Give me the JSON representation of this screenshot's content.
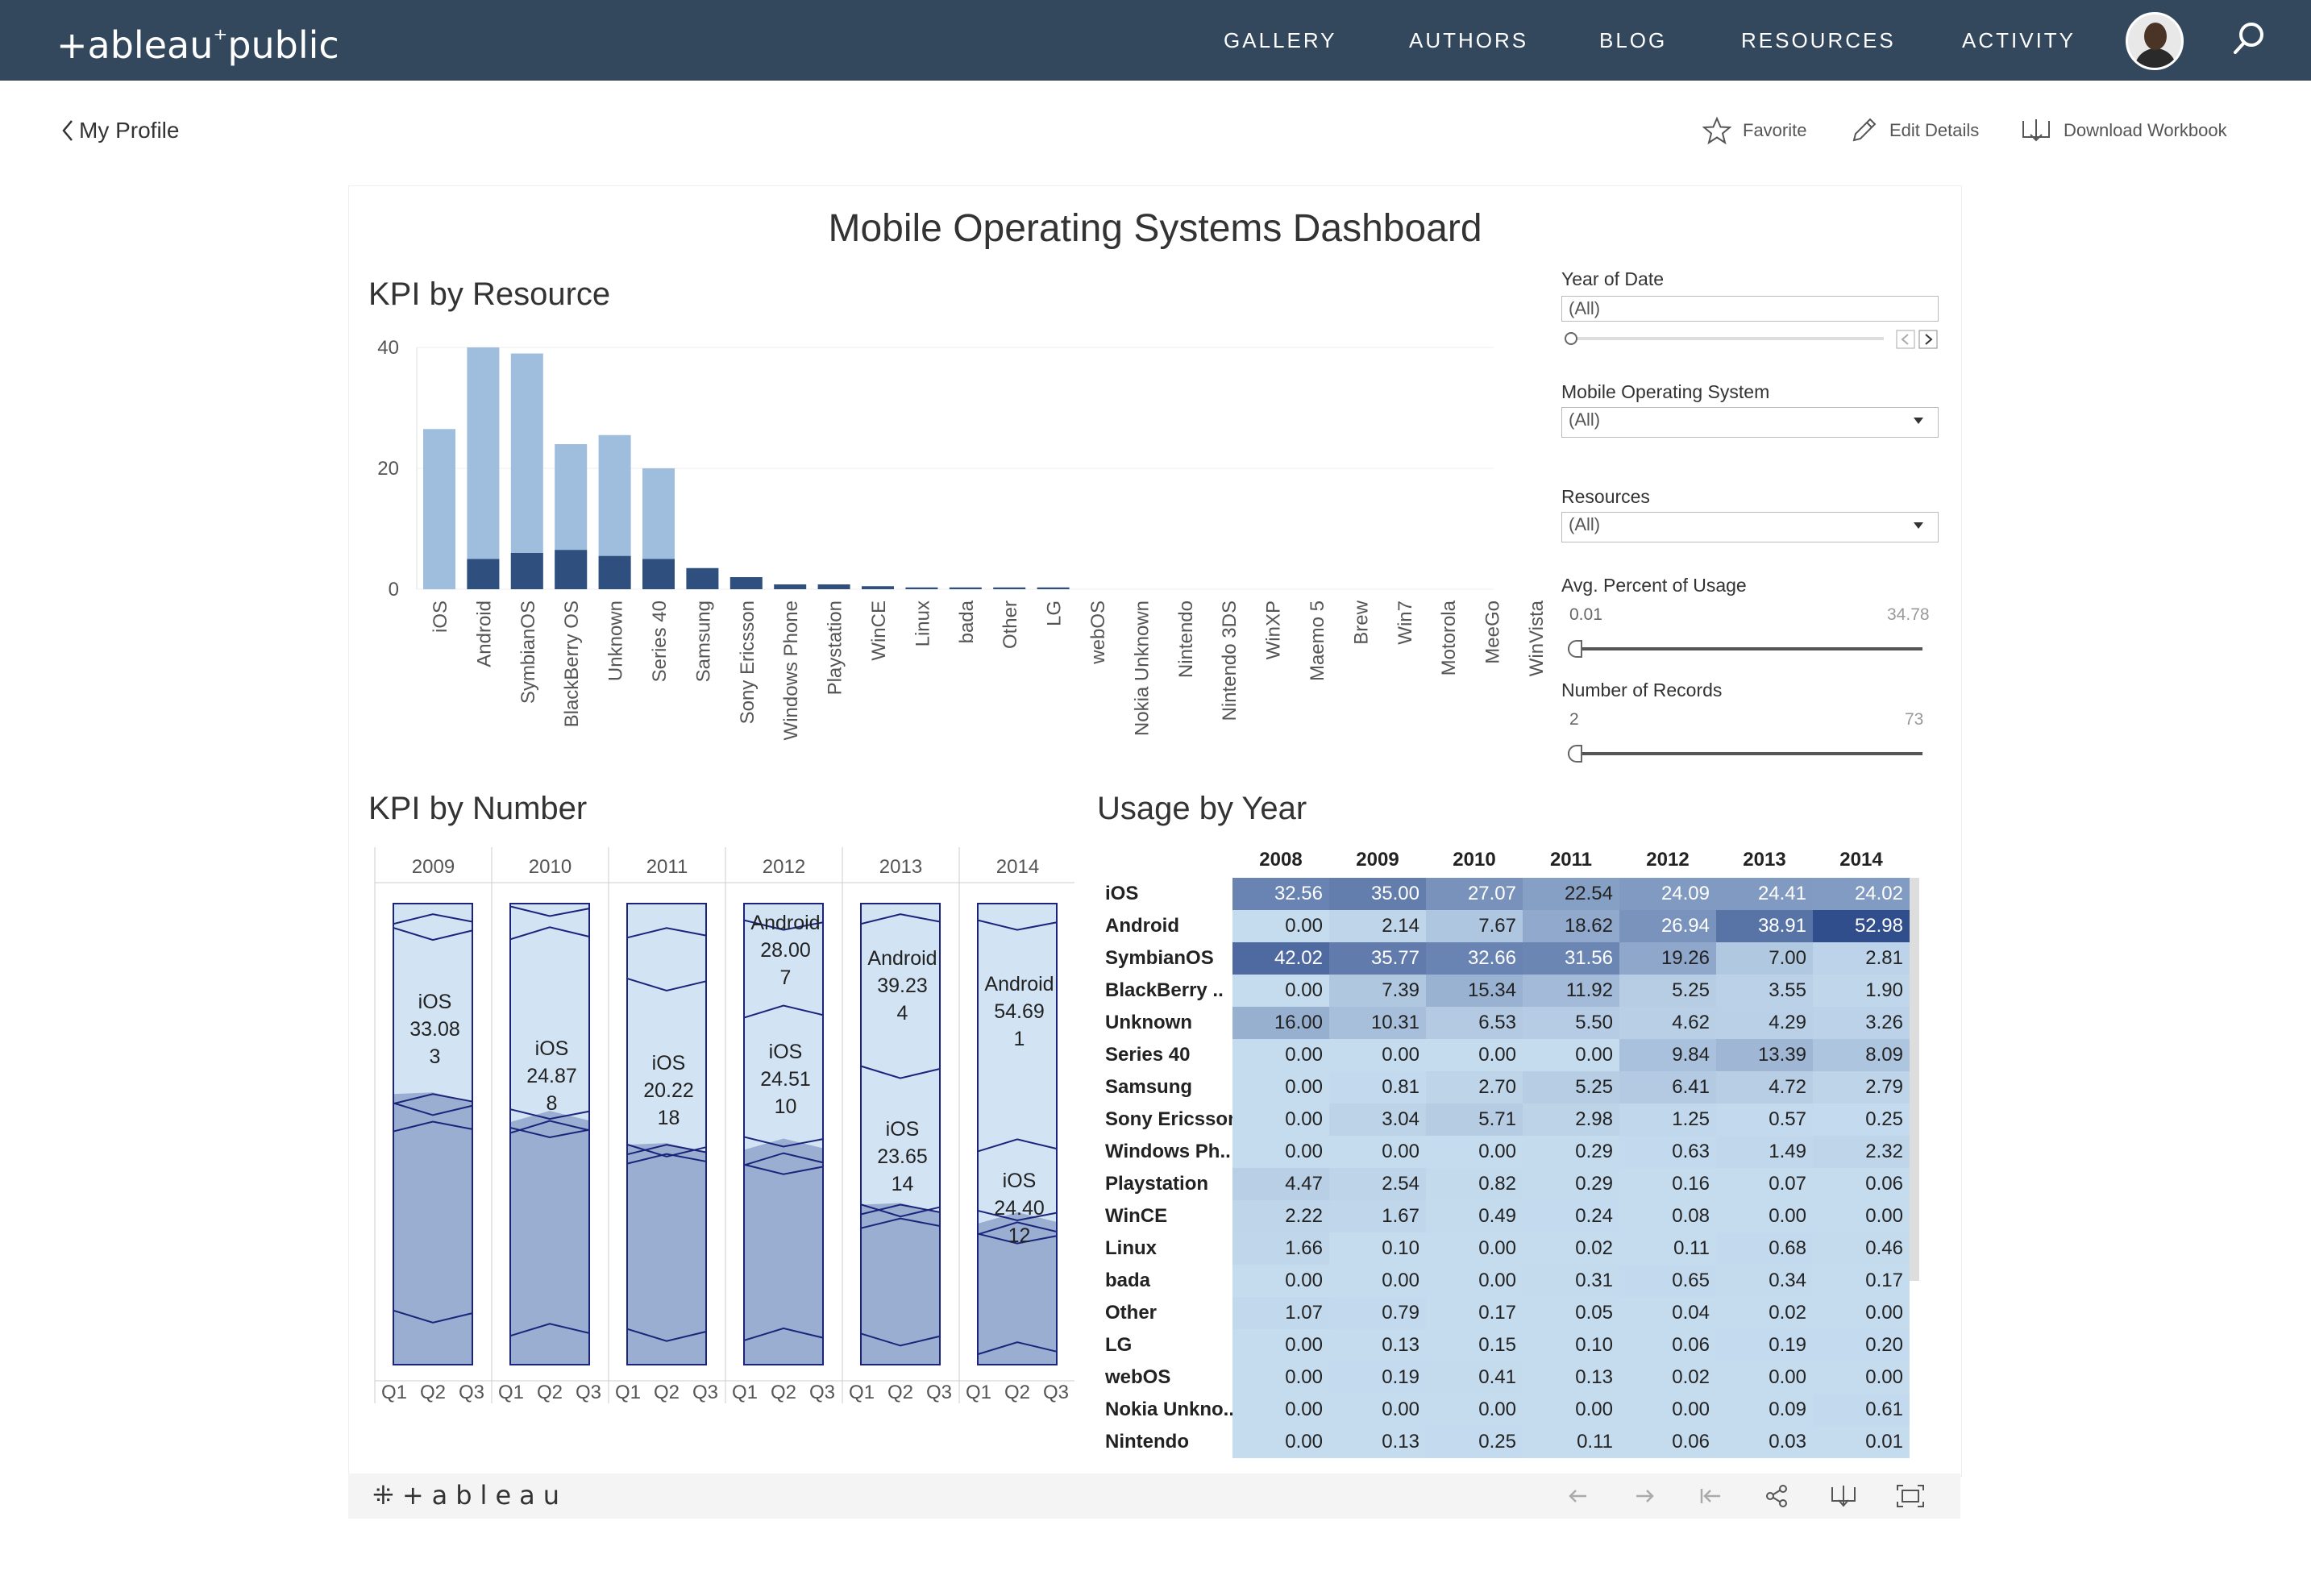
{
  "nav": {
    "logo": "+ableau",
    "logo_suffix": "public",
    "items": [
      "GALLERY",
      "AUTHORS",
      "BLOG",
      "RESOURCES",
      "ACTIVITY"
    ]
  },
  "subbar": {
    "back_label": "My Profile",
    "favorite": "Favorite",
    "edit": "Edit Details",
    "download": "Download Workbook"
  },
  "dashboard": {
    "title": "Mobile Operating Systems Dashboard",
    "kpi_resource_title": "KPI by Resource",
    "kpi_number_title": "KPI by Number",
    "usage_title": "Usage by Year"
  },
  "filters": {
    "year": {
      "label": "Year of Date",
      "value": "(All)"
    },
    "os": {
      "label": "Mobile Operating System",
      "value": "(All)"
    },
    "resources": {
      "label": "Resources",
      "value": "(All)"
    },
    "avg_usage": {
      "label": "Avg. Percent of Usage",
      "min": "0.01",
      "max": "34.78"
    },
    "records": {
      "label": "Number of Records",
      "min": "2",
      "max": "73"
    }
  },
  "chart_data": [
    {
      "type": "bar",
      "title": "KPI by Resource",
      "categories": [
        "iOS",
        "Android",
        "SymbianOS",
        "BlackBerry OS",
        "Unknown",
        "Series 40",
        "Samsung",
        "Sony Ericsson",
        "Windows Phone",
        "Playstation",
        "WinCE",
        "Linux",
        "bada",
        "Other",
        "LG",
        "webOS",
        "Nokia Unknown",
        "Nintendo",
        "Nintendo 3DS",
        "WinXP",
        "Maemo 5",
        "Brew",
        "Win7",
        "Motorola",
        "MeeGo",
        "WinVista"
      ],
      "series": [
        {
          "values": [
            26.5,
            40,
            39,
            24,
            25.5,
            20,
            0,
            0,
            0,
            0,
            0,
            0,
            0,
            0,
            0,
            0,
            0,
            0,
            0,
            0,
            0,
            0,
            0,
            0,
            0,
            0
          ]
        },
        {
          "values": [
            0,
            5,
            6,
            6.5,
            5.5,
            5,
            3.5,
            2,
            0.8,
            0.8,
            0.5,
            0.3,
            0.3,
            0.3,
            0.3,
            0,
            0,
            0,
            0,
            0,
            0,
            0,
            0,
            0,
            0,
            0
          ]
        }
      ],
      "yticks": [
        "0",
        "20",
        "40"
      ],
      "ylim": [
        0,
        40
      ]
    },
    {
      "type": "area",
      "title": "KPI by Number",
      "years": [
        "2009",
        "2010",
        "2011",
        "2012",
        "2013",
        "2014"
      ],
      "quarters": [
        "Q1",
        "Q2",
        "Q3"
      ],
      "labels": [
        {
          "year": "2009",
          "lines": [
            "iOS",
            "33.08",
            "3"
          ]
        },
        {
          "year": "2010",
          "lines": [
            "iOS",
            "24.87",
            "8"
          ]
        },
        {
          "year": "2011",
          "lines": [
            "iOS",
            "20.22",
            "18"
          ]
        },
        {
          "year": "2012",
          "lines": [
            "Android",
            "28.00",
            "7"
          ]
        },
        {
          "year": "2012",
          "lines": [
            "iOS",
            "24.51",
            "10"
          ]
        },
        {
          "year": "2013",
          "lines": [
            "Android",
            "39.23",
            "4"
          ]
        },
        {
          "year": "2013",
          "lines": [
            "iOS",
            "23.65",
            "14"
          ]
        },
        {
          "year": "2014",
          "lines": [
            "Android",
            "54.69",
            "1"
          ]
        },
        {
          "year": "2014",
          "lines": [
            "iOS",
            "24.40",
            "12"
          ]
        }
      ]
    },
    {
      "type": "table",
      "title": "Usage by Year",
      "columns": [
        "2008",
        "2009",
        "2010",
        "2011",
        "2012",
        "2013",
        "2014"
      ],
      "rows": [
        {
          "label": "iOS",
          "values": [
            "32.56",
            "35.00",
            "27.07",
            "22.54",
            "24.09",
            "24.41",
            "24.02"
          ]
        },
        {
          "label": "Android",
          "values": [
            "0.00",
            "2.14",
            "7.67",
            "18.62",
            "26.94",
            "38.91",
            "52.98"
          ]
        },
        {
          "label": "SymbianOS",
          "values": [
            "42.02",
            "35.77",
            "32.66",
            "31.56",
            "19.26",
            "7.00",
            "2.81"
          ]
        },
        {
          "label": "BlackBerry ..",
          "values": [
            "0.00",
            "7.39",
            "15.34",
            "11.92",
            "5.25",
            "3.55",
            "1.90"
          ]
        },
        {
          "label": "Unknown",
          "values": [
            "16.00",
            "10.31",
            "6.53",
            "5.50",
            "4.62",
            "4.29",
            "3.26"
          ]
        },
        {
          "label": "Series 40",
          "values": [
            "0.00",
            "0.00",
            "0.00",
            "0.00",
            "9.84",
            "13.39",
            "8.09"
          ]
        },
        {
          "label": "Samsung",
          "values": [
            "0.00",
            "0.81",
            "2.70",
            "5.25",
            "6.41",
            "4.72",
            "2.79"
          ]
        },
        {
          "label": "Sony Ericsson",
          "values": [
            "0.00",
            "3.04",
            "5.71",
            "2.98",
            "1.25",
            "0.57",
            "0.25"
          ]
        },
        {
          "label": "Windows Ph..",
          "values": [
            "0.00",
            "0.00",
            "0.00",
            "0.29",
            "0.63",
            "1.49",
            "2.32"
          ]
        },
        {
          "label": "Playstation",
          "values": [
            "4.47",
            "2.54",
            "0.82",
            "0.29",
            "0.16",
            "0.07",
            "0.06"
          ]
        },
        {
          "label": "WinCE",
          "values": [
            "2.22",
            "1.67",
            "0.49",
            "0.24",
            "0.08",
            "0.00",
            "0.00"
          ]
        },
        {
          "label": "Linux",
          "values": [
            "1.66",
            "0.10",
            "0.00",
            "0.02",
            "0.11",
            "0.68",
            "0.46"
          ]
        },
        {
          "label": "bada",
          "values": [
            "0.00",
            "0.00",
            "0.00",
            "0.31",
            "0.65",
            "0.34",
            "0.17"
          ]
        },
        {
          "label": "Other",
          "values": [
            "1.07",
            "0.79",
            "0.17",
            "0.05",
            "0.04",
            "0.02",
            "0.00"
          ]
        },
        {
          "label": "LG",
          "values": [
            "0.00",
            "0.13",
            "0.15",
            "0.10",
            "0.06",
            "0.19",
            "0.20"
          ]
        },
        {
          "label": "webOS",
          "values": [
            "0.00",
            "0.19",
            "0.41",
            "0.13",
            "0.02",
            "0.00",
            "0.00"
          ]
        },
        {
          "label": "Nokia Unkno..",
          "values": [
            "0.00",
            "0.00",
            "0.00",
            "0.00",
            "0.00",
            "0.09",
            "0.61"
          ]
        },
        {
          "label": "Nintendo",
          "values": [
            "0.00",
            "0.13",
            "0.25",
            "0.11",
            "0.06",
            "0.03",
            "0.01"
          ]
        }
      ]
    }
  ],
  "footer": {
    "logo": "+ableau"
  },
  "colors": {
    "nav_bg": "#33475d",
    "bar_light": "#9fbedd",
    "bar_dark": "#2f4f7f",
    "area_light": "#d2e4f4",
    "area_dark": "#9aaed2",
    "line": "#1b237a"
  }
}
